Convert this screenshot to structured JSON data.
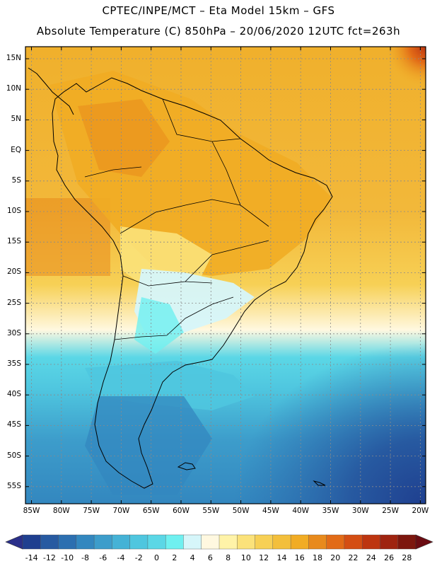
{
  "header": {
    "line1": "CPTEC/INPE/MCT –  Eta Model 15km – GFS",
    "line2": "Absolute Temperature (C) 850hPa – 20/06/2020 12UTC fct=263h"
  },
  "axes": {
    "lat_labels": [
      "15N",
      "10N",
      "5N",
      "EQ",
      "5S",
      "10S",
      "15S",
      "20S",
      "25S",
      "30S",
      "35S",
      "40S",
      "45S",
      "50S",
      "55S"
    ],
    "lon_labels": [
      "85W",
      "80W",
      "75W",
      "70W",
      "65W",
      "60W",
      "55W",
      "50W",
      "45W",
      "40W",
      "35W",
      "30W",
      "25W",
      "20W"
    ]
  },
  "colorbar": {
    "labels": [
      "-14",
      "-12",
      "-10",
      "-8",
      "-6",
      "-4",
      "-2",
      "0",
      "2",
      "4",
      "6",
      "8",
      "10",
      "12",
      "14",
      "16",
      "18",
      "20",
      "22",
      "24",
      "26",
      "28"
    ],
    "colors": [
      "#1f3f8f",
      "#275aa1",
      "#2c6fb0",
      "#3387bf",
      "#3d9dcb",
      "#45b2d6",
      "#4fc6df",
      "#5bd7e6",
      "#6ff0f0",
      "#d6f6fa",
      "#fff8e0",
      "#fff3a8",
      "#fbe27a",
      "#f7d055",
      "#f3bf3b",
      "#f1ac24",
      "#e88a1c",
      "#e26b17",
      "#d44e13",
      "#bd3510",
      "#9f2410",
      "#7d170e"
    ],
    "low_end_color": "#2a2f8a",
    "high_end_color": "#6b0c12"
  }
}
